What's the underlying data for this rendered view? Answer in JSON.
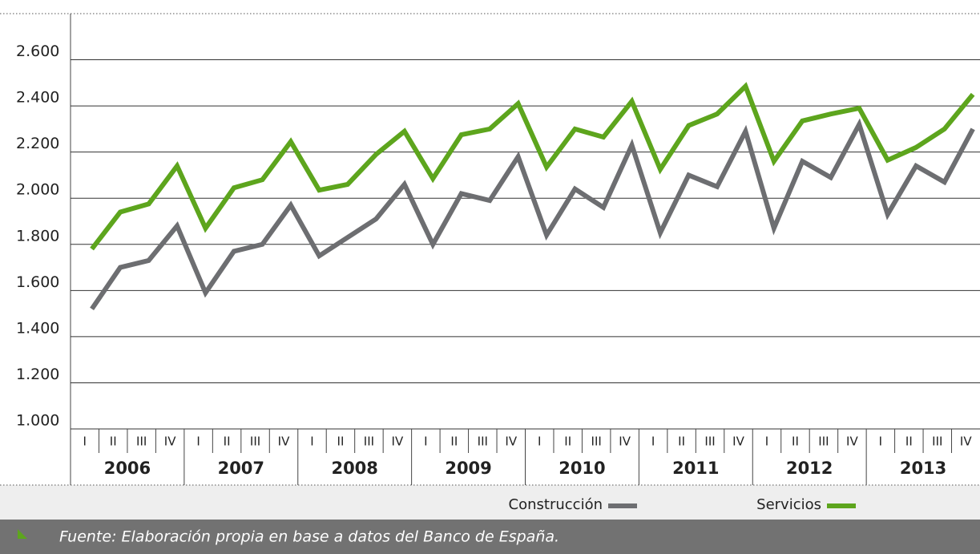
{
  "chart_data": {
    "type": "line",
    "categories": [
      "I",
      "II",
      "III",
      "IV",
      "I",
      "II",
      "III",
      "IV",
      "I",
      "II",
      "III",
      "IV",
      "I",
      "II",
      "III",
      "IV",
      "I",
      "II",
      "III",
      "IV",
      "I",
      "II",
      "III",
      "IV",
      "I",
      "II",
      "III",
      "IV",
      "I",
      "II",
      "III",
      "IV"
    ],
    "years": [
      "2006",
      "2007",
      "2008",
      "2009",
      "2010",
      "2011",
      "2012",
      "2013"
    ],
    "series": [
      {
        "name": "Construcción",
        "color": "#6d6e71",
        "values": [
          1520,
          1700,
          1730,
          1880,
          1590,
          1770,
          1800,
          1970,
          1750,
          1830,
          1910,
          2060,
          1800,
          2020,
          1990,
          2180,
          1840,
          2040,
          1960,
          2230,
          1850,
          2100,
          2050,
          2290,
          1870,
          2160,
          2090,
          2320,
          1930,
          2140,
          2070,
          2300
        ]
      },
      {
        "name": "Servicios",
        "color": "#5da51d",
        "values": [
          1780,
          1940,
          1975,
          2140,
          1870,
          2045,
          2080,
          2245,
          2035,
          2060,
          2190,
          2290,
          2085,
          2275,
          2300,
          2410,
          2135,
          2300,
          2265,
          2420,
          2125,
          2315,
          2365,
          2485,
          2160,
          2335,
          2365,
          2390,
          2165,
          2220,
          2300,
          2450
        ]
      }
    ],
    "ylim": [
      1000,
      2800
    ],
    "yticks": [
      {
        "value": 1000,
        "label": "1.000"
      },
      {
        "value": 1200,
        "label": "1.200"
      },
      {
        "value": 1400,
        "label": "1.400"
      },
      {
        "value": 1600,
        "label": "1.600"
      },
      {
        "value": 1800,
        "label": "1.800"
      },
      {
        "value": 2000,
        "label": "2.000"
      },
      {
        "value": 2200,
        "label": "2.200"
      },
      {
        "value": 2400,
        "label": "2.400"
      },
      {
        "value": 2600,
        "label": "2.600"
      }
    ],
    "grid": true,
    "source": "Fuente: Elaboración propia en base a datos del Banco de España."
  }
}
